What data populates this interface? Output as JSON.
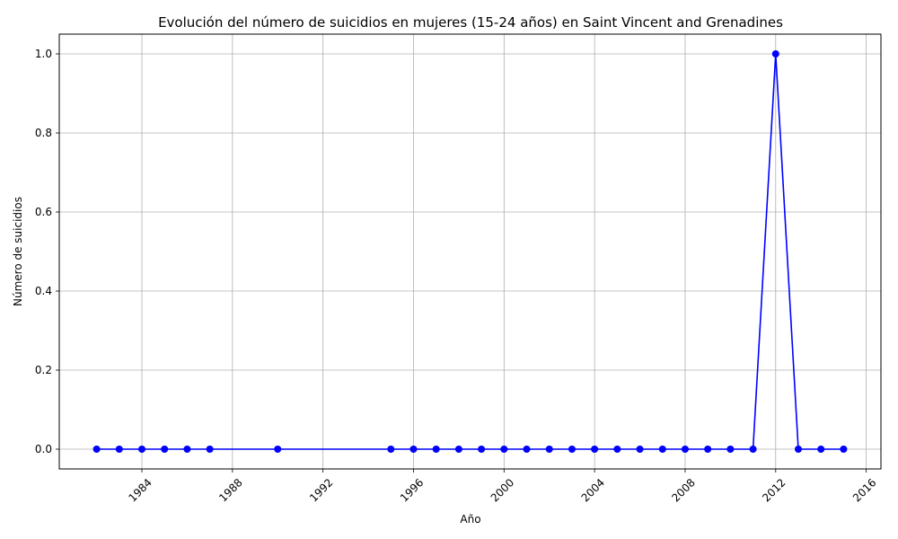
{
  "chart_data": {
    "type": "line",
    "title": "Evolución del número de suicidios en mujeres (15-24 años) en Saint Vincent and Grenadines",
    "xlabel": "Año",
    "ylabel": "Número de suicidios",
    "x": [
      1982,
      1983,
      1984,
      1985,
      1986,
      1987,
      1990,
      1995,
      1996,
      1997,
      1998,
      1999,
      2000,
      2001,
      2002,
      2003,
      2004,
      2005,
      2006,
      2007,
      2008,
      2009,
      2010,
      2011,
      2012,
      2013,
      2014,
      2015
    ],
    "series": [
      {
        "values": [
          0,
          0,
          0,
          0,
          0,
          0,
          0,
          0,
          0,
          0,
          0,
          0,
          0,
          0,
          0,
          0,
          0,
          0,
          0,
          0,
          0,
          0,
          0,
          0,
          1,
          0,
          0,
          0
        ],
        "color": "#0000ff",
        "marker": "circle"
      }
    ],
    "xlim": [
      1980.35,
      2016.65
    ],
    "ylim": [
      -0.05,
      1.05
    ],
    "xticks": [
      "1984",
      "1988",
      "1992",
      "1996",
      "2000",
      "2004",
      "2008",
      "2012",
      "2016"
    ],
    "yticks": [
      "0.0",
      "0.2",
      "0.4",
      "0.6",
      "0.8",
      "1.0"
    ],
    "grid": true
  }
}
